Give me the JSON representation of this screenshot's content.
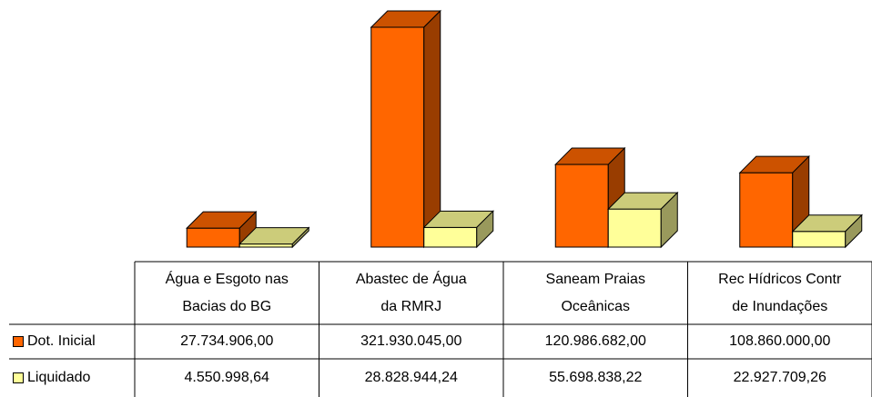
{
  "chart_data": {
    "type": "bar3d",
    "categories": [
      "Água e Esgoto nas\nBacias do BG",
      "Abastec de Água\nda RMRJ",
      "Saneam Praias\nOceânicas",
      "Rec Hídricos Contr\nde Inundações"
    ],
    "series": [
      {
        "name": "Dot. Inicial",
        "color": "#ff6600",
        "values": [
          27734906.0,
          321930045.0,
          120986682.0,
          108860000.0
        ],
        "value_labels": [
          "27.734.906,00",
          "321.930.045,00",
          "120.986.682,00",
          "108.860.000,00"
        ]
      },
      {
        "name": "Liquidado",
        "color": "#ffff99",
        "values": [
          4550998.64,
          28828944.24,
          55698838.22,
          22927709.26
        ],
        "value_labels": [
          "4.550.998,64",
          "28.828.944,24",
          "55.698.838,22",
          "22.927.709,26"
        ]
      }
    ]
  }
}
